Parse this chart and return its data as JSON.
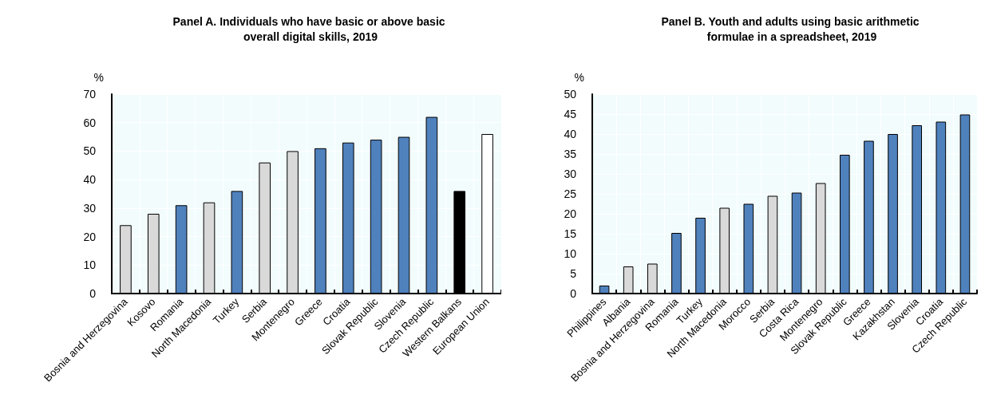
{
  "chart_data": [
    {
      "type": "bar",
      "title": "Panel A. Individuals who have basic or above basic overall digital skills, 2019",
      "ylabel": "%",
      "categories": [
        "Bosnia and Herzegovina",
        "Kosovo",
        "Romania",
        "North Macedonia",
        "Turkey",
        "Serbia",
        "Montenegro",
        "Greece",
        "Croatia",
        "Slovak Republic",
        "Slovenia",
        "Czech Republic",
        "Western Balkans",
        "European Union"
      ],
      "values": [
        24,
        28,
        31,
        32,
        36,
        46,
        50,
        51,
        53,
        54,
        55,
        62,
        36,
        56
      ],
      "colors": [
        "#d9d9d9",
        "#d9d9d9",
        "#4f81bd",
        "#d9d9d9",
        "#4f81bd",
        "#d9d9d9",
        "#d9d9d9",
        "#4f81bd",
        "#4f81bd",
        "#4f81bd",
        "#4f81bd",
        "#4f81bd",
        "#000000",
        "#ffffff"
      ],
      "ylim": [
        0,
        70
      ],
      "yticks": [
        0,
        10,
        20,
        30,
        40,
        50,
        60,
        70
      ],
      "grid": true
    },
    {
      "type": "bar",
      "title": "Panel B. Youth and adults using basic arithmetic formulae in a spreadsheet, 2019",
      "ylabel": "%",
      "categories": [
        "Philippines",
        "Albania",
        "Bosnia and Herzegovina",
        "Romania",
        "Turkey",
        "North Macedonia",
        "Morocco",
        "Serbia",
        "Costa Rica",
        "Montenegro",
        "Slovak Republic",
        "Greece",
        "Kazakhstan",
        "Slovenia",
        "Croatia",
        "Czech Republic"
      ],
      "values": [
        2,
        6.8,
        7.5,
        15.2,
        19,
        21.5,
        22.5,
        24.5,
        25.3,
        27.7,
        34.8,
        38.3,
        40,
        42.2,
        43.1,
        44.9
      ],
      "colors": [
        "#4f81bd",
        "#d9d9d9",
        "#d9d9d9",
        "#4f81bd",
        "#4f81bd",
        "#d9d9d9",
        "#4f81bd",
        "#d9d9d9",
        "#4f81bd",
        "#d9d9d9",
        "#4f81bd",
        "#4f81bd",
        "#4f81bd",
        "#4f81bd",
        "#4f81bd",
        "#4f81bd"
      ],
      "ylim": [
        0,
        50
      ],
      "yticks": [
        0,
        5,
        10,
        15,
        20,
        25,
        30,
        35,
        40,
        45,
        50
      ],
      "grid": true
    }
  ]
}
